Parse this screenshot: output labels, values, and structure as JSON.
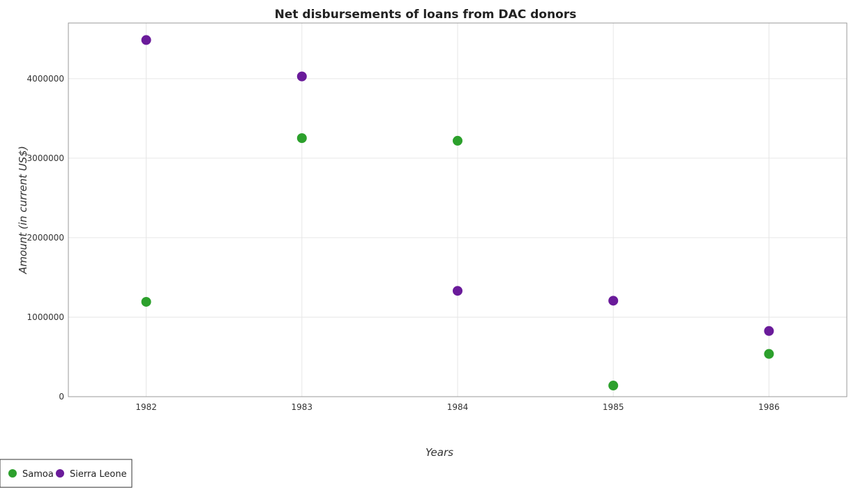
{
  "chart_data": {
    "type": "scatter",
    "title": "Net disbursements of loans from DAC donors",
    "xlabel": "Years",
    "ylabel": "Amount (in current US$)",
    "categories": [
      "1982",
      "1983",
      "1984",
      "1985",
      "1986"
    ],
    "ylim": [
      0,
      4700000
    ],
    "yticks": [
      0,
      1000000,
      2000000,
      3000000,
      4000000
    ],
    "ytick_labels": [
      "0",
      "1000000",
      "2000000",
      "3000000",
      "4000000"
    ],
    "grid": true,
    "legend_position": "bottom-left",
    "series": [
      {
        "name": "Samoa",
        "color": "#2ca02c",
        "values": [
          1193000,
          3252000,
          3219000,
          140000,
          538000
        ]
      },
      {
        "name": "Sierra Leone",
        "color": "#6a1b9a",
        "values": [
          4486000,
          4028000,
          1331000,
          1207000,
          826000
        ]
      }
    ]
  }
}
